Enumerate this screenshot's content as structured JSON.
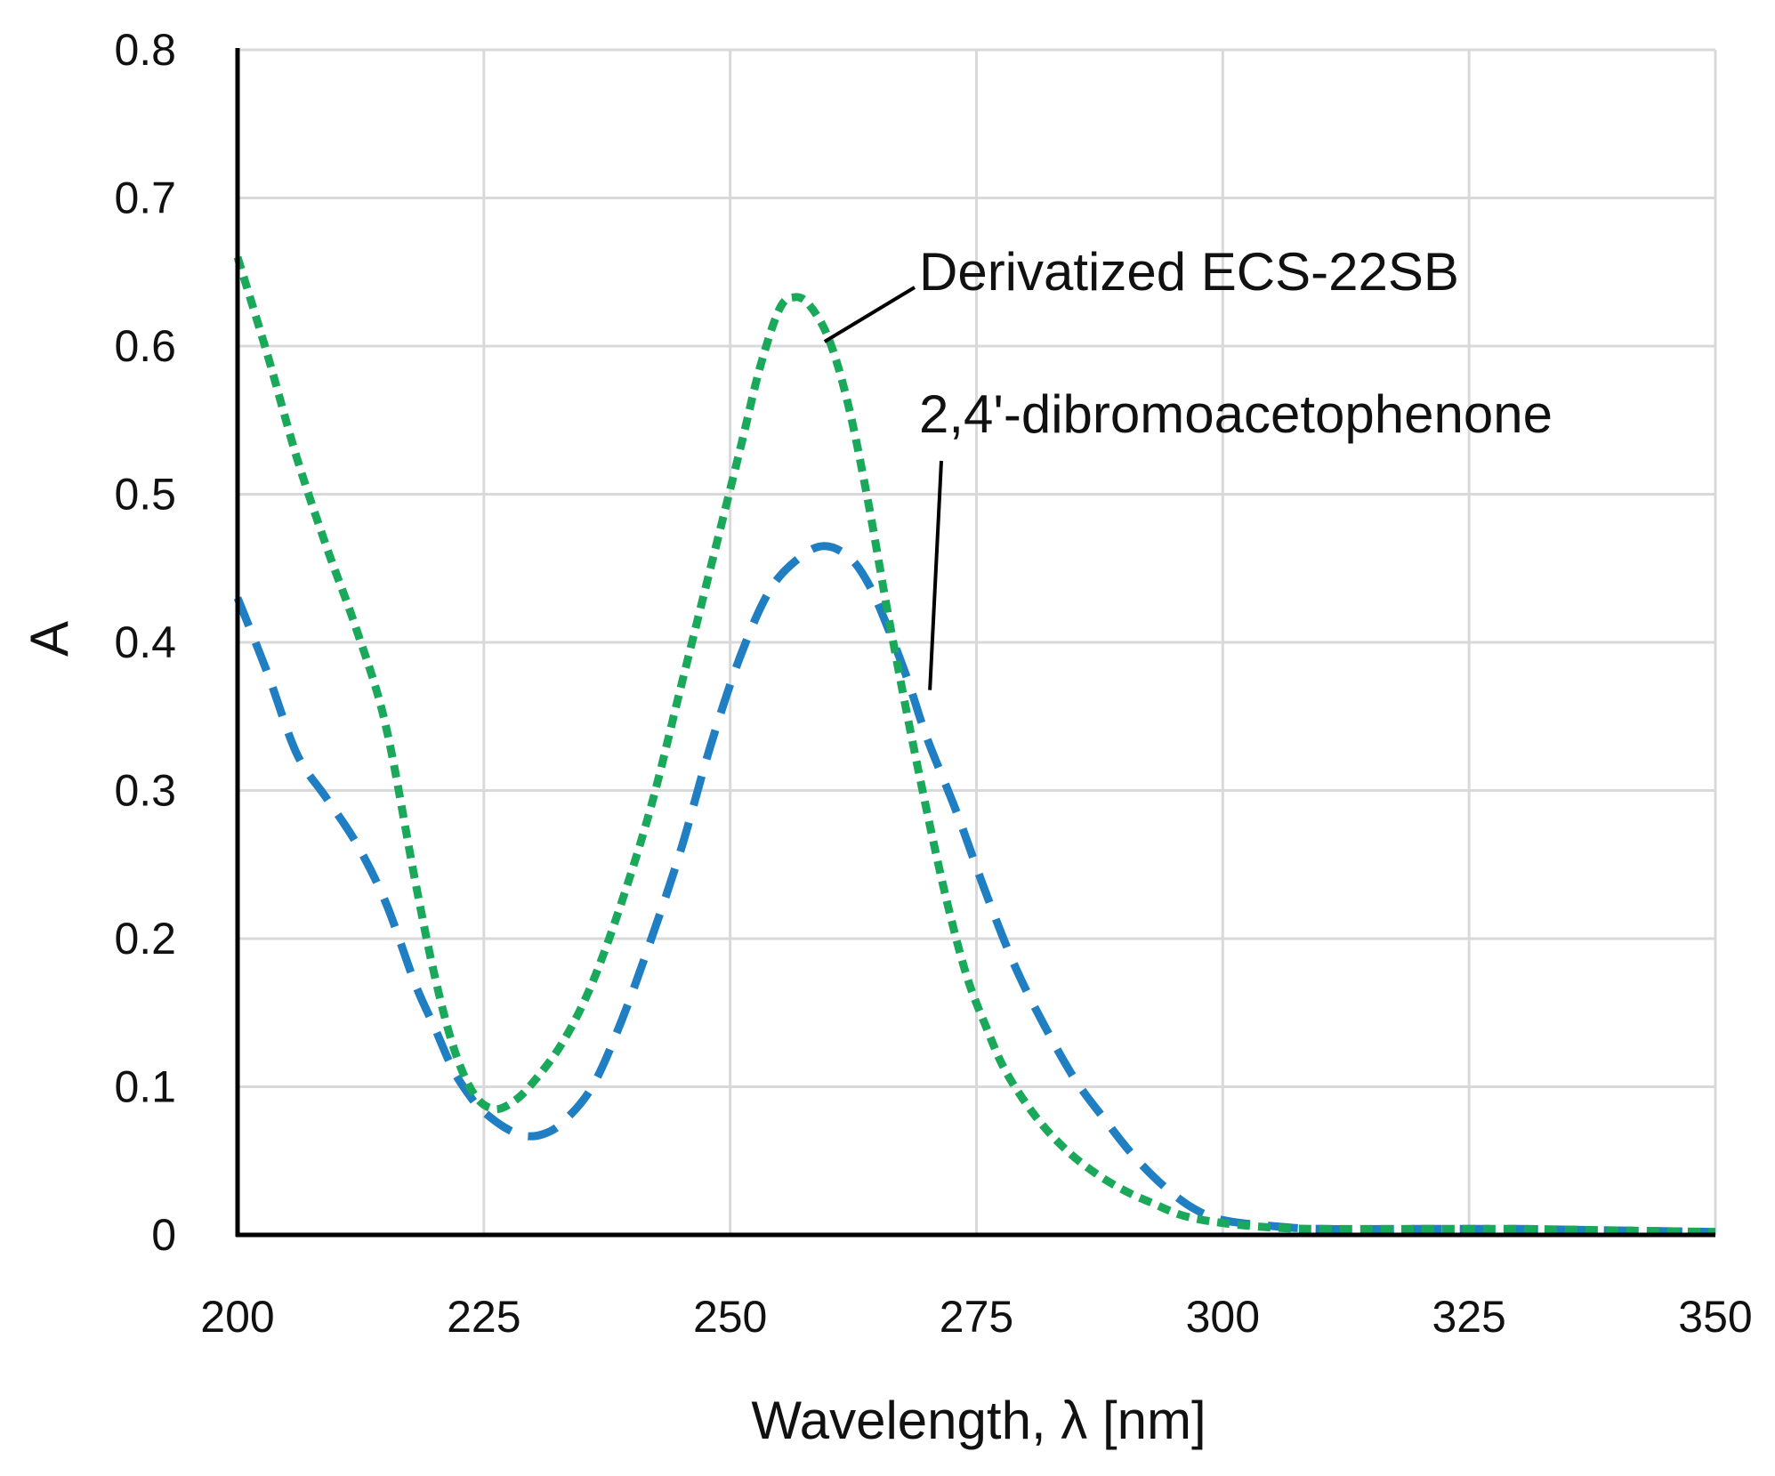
{
  "chart_data": {
    "type": "line",
    "title": "",
    "xlabel": "Wavelength, λ [nm]",
    "ylabel": "A",
    "xlim": [
      200,
      350
    ],
    "ylim": [
      0,
      0.8
    ],
    "x_ticks": [
      200,
      225,
      250,
      275,
      300,
      325,
      350
    ],
    "x_tick_labels": [
      "200",
      "225",
      "250",
      "275",
      "300",
      "325",
      "350"
    ],
    "y_ticks": [
      0,
      0.1,
      0.2,
      0.3,
      0.4,
      0.5,
      0.6,
      0.7,
      0.8
    ],
    "y_tick_labels": [
      "0",
      "0.1",
      "0.2",
      "0.3",
      "0.4",
      "0.5",
      "0.6",
      "0.7",
      "0.8"
    ],
    "grid": true,
    "legend": "none",
    "series": [
      {
        "name": "Derivatized ECS-22SB",
        "color": "#1aa85a",
        "style": "short-dash",
        "points": [
          [
            200,
            0.66
          ],
          [
            203,
            0.595
          ],
          [
            206,
            0.525
          ],
          [
            209,
            0.465
          ],
          [
            212,
            0.41
          ],
          [
            215,
            0.345
          ],
          [
            218,
            0.24
          ],
          [
            220,
            0.175
          ],
          [
            222,
            0.125
          ],
          [
            224,
            0.095
          ],
          [
            226,
            0.085
          ],
          [
            228,
            0.09
          ],
          [
            230,
            0.103
          ],
          [
            233,
            0.13
          ],
          [
            236,
            0.17
          ],
          [
            239,
            0.225
          ],
          [
            242,
            0.29
          ],
          [
            245,
            0.37
          ],
          [
            248,
            0.45
          ],
          [
            251,
            0.53
          ],
          [
            253,
            0.585
          ],
          [
            255,
            0.625
          ],
          [
            256.5,
            0.633
          ],
          [
            258,
            0.628
          ],
          [
            260,
            0.605
          ],
          [
            262,
            0.56
          ],
          [
            264,
            0.495
          ],
          [
            266,
            0.42
          ],
          [
            268,
            0.35
          ],
          [
            270,
            0.285
          ],
          [
            272,
            0.225
          ],
          [
            274,
            0.175
          ],
          [
            276,
            0.14
          ],
          [
            278,
            0.11
          ],
          [
            281,
            0.08
          ],
          [
            284,
            0.058
          ],
          [
            287,
            0.042
          ],
          [
            290,
            0.03
          ],
          [
            293,
            0.021
          ],
          [
            296,
            0.013
          ],
          [
            300,
            0.008
          ],
          [
            305,
            0.005
          ],
          [
            310,
            0.004
          ],
          [
            320,
            0.004
          ],
          [
            330,
            0.004
          ],
          [
            340,
            0.003
          ],
          [
            350,
            0.002
          ]
        ]
      },
      {
        "name": "2,4'-dibromoacetophenone",
        "color": "#1f7fc2",
        "style": "long-dash",
        "points": [
          [
            200,
            0.43
          ],
          [
            203,
            0.38
          ],
          [
            206,
            0.325
          ],
          [
            209,
            0.295
          ],
          [
            212,
            0.265
          ],
          [
            215,
            0.225
          ],
          [
            218,
            0.17
          ],
          [
            220,
            0.14
          ],
          [
            222,
            0.11
          ],
          [
            224,
            0.09
          ],
          [
            225,
            0.083
          ],
          [
            227,
            0.073
          ],
          [
            229,
            0.067
          ],
          [
            231,
            0.068
          ],
          [
            233,
            0.076
          ],
          [
            236,
            0.1
          ],
          [
            239,
            0.145
          ],
          [
            242,
            0.2
          ],
          [
            245,
            0.26
          ],
          [
            248,
            0.33
          ],
          [
            251,
            0.39
          ],
          [
            254,
            0.435
          ],
          [
            257,
            0.457
          ],
          [
            259.5,
            0.465
          ],
          [
            262,
            0.458
          ],
          [
            264,
            0.44
          ],
          [
            266,
            0.41
          ],
          [
            268,
            0.375
          ],
          [
            270,
            0.335
          ],
          [
            273,
            0.285
          ],
          [
            276,
            0.23
          ],
          [
            279,
            0.18
          ],
          [
            282,
            0.14
          ],
          [
            285,
            0.105
          ],
          [
            288,
            0.078
          ],
          [
            291,
            0.053
          ],
          [
            294,
            0.033
          ],
          [
            297,
            0.018
          ],
          [
            300,
            0.01
          ],
          [
            305,
            0.006
          ],
          [
            310,
            0.004
          ],
          [
            320,
            0.004
          ],
          [
            330,
            0.004
          ],
          [
            340,
            0.003
          ],
          [
            350,
            0.002
          ]
        ]
      }
    ],
    "annotations": [
      {
        "text": "Derivatized ECS-22SB",
        "target": [
          258.5,
          0.6
        ]
      },
      {
        "text": "2,4'-dibromoacetophenone",
        "target": [
          270,
          0.375
        ]
      }
    ]
  }
}
